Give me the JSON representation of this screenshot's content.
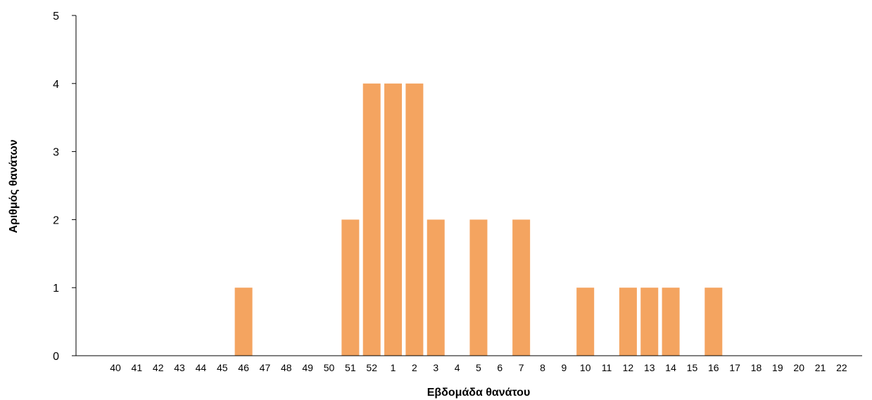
{
  "chart_data": {
    "type": "bar",
    "title": "",
    "xlabel": "Εβδομάδα θανάτου",
    "ylabel": "Αριθμός θανάτων",
    "ylim": [
      0,
      5
    ],
    "yticks": [
      0,
      1,
      2,
      3,
      4,
      5
    ],
    "grid": false,
    "legend": "none",
    "bar_color": "#F4A460",
    "categories": [
      "40",
      "41",
      "42",
      "43",
      "44",
      "45",
      "46",
      "47",
      "48",
      "49",
      "50",
      "51",
      "52",
      "1",
      "2",
      "3",
      "4",
      "5",
      "6",
      "7",
      "8",
      "9",
      "10",
      "11",
      "12",
      "13",
      "14",
      "15",
      "16",
      "17",
      "18",
      "19",
      "20",
      "21",
      "22"
    ],
    "values": [
      0,
      0,
      0,
      0,
      0,
      0,
      1,
      0,
      0,
      0,
      0,
      2,
      4,
      4,
      4,
      2,
      0,
      2,
      0,
      2,
      0,
      0,
      1,
      0,
      1,
      1,
      1,
      0,
      1,
      0,
      0,
      0,
      0,
      0,
      0
    ]
  }
}
